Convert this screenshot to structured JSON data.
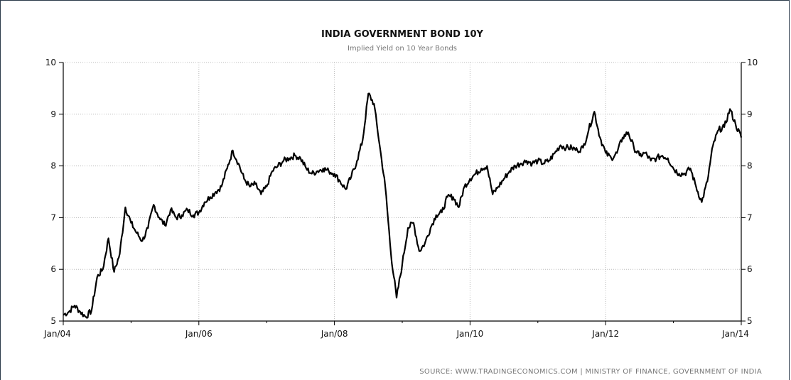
{
  "chart_data": {
    "type": "line",
    "title": "INDIA GOVERNMENT BOND 10Y",
    "subtitle": "Implied Yield on 10 Year Bonds",
    "source": "SOURCE: WWW.TRADINGECONOMICS.COM | MINISTRY OF FINANCE, GOVERNMENT OF INDIA",
    "xlabel": "",
    "ylabel": "",
    "xlim": [
      "2004-01",
      "2014-01"
    ],
    "ylim": [
      5,
      10
    ],
    "y_ticks": [
      "5",
      "6",
      "7",
      "8",
      "9",
      "10"
    ],
    "x_ticks": [
      "Jan/04",
      "Jan/06",
      "Jan/08",
      "Jan/10",
      "Jan/12",
      "Jan/14"
    ],
    "grid": true,
    "legend": "none",
    "line_color": "#000000",
    "series": [
      {
        "x": [
          "2004-01",
          "2004-02",
          "2004-03",
          "2004-04",
          "2004-05",
          "2004-06",
          "2004-07",
          "2004-08",
          "2004-09",
          "2004-10",
          "2004-11",
          "2004-12",
          "2005-01",
          "2005-02",
          "2005-03",
          "2005-04",
          "2005-05",
          "2005-06",
          "2005-07",
          "2005-08",
          "2005-09",
          "2005-10",
          "2005-11",
          "2005-12",
          "2006-01",
          "2006-02",
          "2006-03",
          "2006-04",
          "2006-05",
          "2006-06",
          "2006-07",
          "2006-08",
          "2006-09",
          "2006-10",
          "2006-11",
          "2006-12",
          "2007-01",
          "2007-02",
          "2007-03",
          "2007-04",
          "2007-05",
          "2007-06",
          "2007-07",
          "2007-08",
          "2007-09",
          "2007-10",
          "2007-11",
          "2007-12",
          "2008-01",
          "2008-02",
          "2008-03",
          "2008-04",
          "2008-05",
          "2008-06",
          "2008-07",
          "2008-08",
          "2008-09",
          "2008-10",
          "2008-11",
          "2008-12",
          "2009-01",
          "2009-02",
          "2009-03",
          "2009-04",
          "2009-05",
          "2009-06",
          "2009-07",
          "2009-08",
          "2009-09",
          "2009-10",
          "2009-11",
          "2009-12",
          "2010-01",
          "2010-02",
          "2010-03",
          "2010-04",
          "2010-05",
          "2010-06",
          "2010-07",
          "2010-08",
          "2010-09",
          "2010-10",
          "2010-11",
          "2010-12",
          "2011-01",
          "2011-02",
          "2011-03",
          "2011-04",
          "2011-05",
          "2011-06",
          "2011-07",
          "2011-08",
          "2011-09",
          "2011-10",
          "2011-11",
          "2011-12",
          "2012-01",
          "2012-02",
          "2012-03",
          "2012-04",
          "2012-05",
          "2012-06",
          "2012-07",
          "2012-08",
          "2012-09",
          "2012-10",
          "2012-11",
          "2012-12",
          "2013-01",
          "2013-02",
          "2013-03",
          "2013-04",
          "2013-05",
          "2013-06",
          "2013-07",
          "2013-08",
          "2013-09",
          "2013-10",
          "2013-11",
          "2013-12",
          "2014-01"
        ],
        "values": [
          5.12,
          5.18,
          5.3,
          5.18,
          5.08,
          5.2,
          5.85,
          6.0,
          6.6,
          5.95,
          6.3,
          7.2,
          6.9,
          6.7,
          6.55,
          6.8,
          7.25,
          7.0,
          6.85,
          7.15,
          7.0,
          7.05,
          7.15,
          7.05,
          7.1,
          7.3,
          7.4,
          7.5,
          7.6,
          7.95,
          8.3,
          8.05,
          7.75,
          7.6,
          7.65,
          7.45,
          7.6,
          7.9,
          8.0,
          8.1,
          8.15,
          8.2,
          8.15,
          7.95,
          7.85,
          7.9,
          7.95,
          7.9,
          7.85,
          7.7,
          7.55,
          7.8,
          8.1,
          8.5,
          9.4,
          9.2,
          8.4,
          7.6,
          6.3,
          5.45,
          6.1,
          6.8,
          6.9,
          6.35,
          6.5,
          6.8,
          7.05,
          7.1,
          7.4,
          7.4,
          7.2,
          7.6,
          7.75,
          7.85,
          7.95,
          8.0,
          7.45,
          7.6,
          7.75,
          7.9,
          8.0,
          8.05,
          8.1,
          8.05,
          8.1,
          8.05,
          8.1,
          8.25,
          8.4,
          8.35,
          8.35,
          8.3,
          8.35,
          8.7,
          9.05,
          8.55,
          8.25,
          8.15,
          8.25,
          8.55,
          8.65,
          8.35,
          8.2,
          8.25,
          8.1,
          8.15,
          8.2,
          8.15,
          7.95,
          7.85,
          7.85,
          7.95,
          7.6,
          7.3,
          7.7,
          8.4,
          8.7,
          8.75,
          9.1,
          8.8,
          8.55
        ]
      }
    ]
  }
}
